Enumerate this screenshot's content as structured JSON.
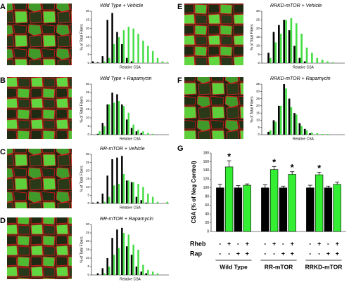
{
  "chart_data": [
    {
      "type": "bar",
      "label": "A",
      "title": "Wild Type + Vehicle",
      "ylabel": "% of Total Fibers",
      "xlabel": "Relative CSA",
      "categories": [
        null,
        null,
        null,
        null,
        null,
        null,
        null,
        null,
        null,
        null,
        null,
        null,
        null,
        null,
        null,
        null
      ],
      "series": [
        {
          "color": "#000000",
          "values": [
            1,
            0.5,
            4,
            25,
            29,
            18,
            11,
            3,
            1,
            0,
            0,
            0,
            0,
            0,
            0,
            0
          ]
        },
        {
          "color": "#44dd44",
          "values": [
            0,
            0,
            1,
            3,
            11,
            15,
            19,
            21,
            20,
            17,
            13,
            10,
            7,
            3,
            1,
            0.5
          ]
        }
      ],
      "ylim": [
        0,
        30
      ],
      "yticks": [
        0,
        5,
        10,
        15,
        20,
        25,
        30
      ]
    },
    {
      "type": "bar",
      "label": "B",
      "title": "Wild Type + Rapamycin",
      "ylabel": "% of Total Fibers",
      "xlabel": "Relative CSA",
      "categories": [
        null,
        null,
        null,
        null,
        null,
        null,
        null,
        null,
        null,
        null,
        null,
        null,
        null,
        null,
        null,
        null
      ],
      "series": [
        {
          "color": "#000000",
          "values": [
            0,
            0.5,
            7,
            18,
            25,
            24,
            18,
            9,
            4,
            2,
            1,
            0,
            0,
            0,
            0,
            0
          ]
        },
        {
          "color": "#44dd44",
          "values": [
            0,
            2,
            5,
            18,
            19,
            20,
            17,
            13,
            6,
            3,
            2,
            1,
            0.5,
            0,
            0,
            0
          ]
        }
      ],
      "ylim": [
        0,
        30
      ],
      "yticks": [
        0,
        5,
        10,
        15,
        20,
        25,
        30
      ]
    },
    {
      "type": "bar",
      "label": "C",
      "title": "RR-mTOR + Vehicle",
      "ylabel": "% of Total Fibers",
      "xlabel": "Relative CSA",
      "categories": [
        null,
        null,
        null,
        null,
        null,
        null,
        null,
        null,
        null,
        null,
        null,
        null,
        null,
        null,
        null,
        null
      ],
      "series": [
        {
          "color": "#000000",
          "values": [
            0.5,
            1,
            6,
            17,
            27,
            28,
            29,
            14,
            13,
            4,
            2,
            0.5,
            0,
            0,
            0,
            0
          ]
        },
        {
          "color": "#44dd44",
          "values": [
            0,
            0,
            1,
            4,
            11,
            12,
            18,
            14,
            13,
            12,
            10,
            6,
            4,
            1,
            0,
            1
          ]
        }
      ],
      "ylim": [
        0,
        30
      ],
      "yticks": [
        0,
        5,
        10,
        15,
        20,
        25,
        30
      ]
    },
    {
      "type": "bar",
      "label": "D",
      "title": "RR-mTOR + Rapamycin",
      "ylabel": "% of Total Fibers",
      "xlabel": "Relative CSA",
      "categories": [
        null,
        null,
        null,
        null,
        null,
        null,
        null,
        null,
        null,
        null,
        null,
        null,
        null,
        null,
        null,
        null
      ],
      "series": [
        {
          "color": "#000000",
          "values": [
            0,
            1,
            4,
            10,
            22,
            27,
            28,
            17,
            12,
            5,
            2,
            1,
            0,
            0,
            0,
            0
          ]
        },
        {
          "color": "#44dd44",
          "values": [
            0,
            0,
            1,
            5,
            12,
            16,
            25,
            24,
            18,
            15,
            6,
            3,
            2,
            1,
            0,
            0
          ]
        }
      ],
      "ylim": [
        0,
        30
      ],
      "yticks": [
        0,
        5,
        10,
        15,
        20,
        25,
        30
      ]
    },
    {
      "type": "bar",
      "label": "E",
      "title": "RRKD-mTOR + Vehicle",
      "ylabel": "% of Total Fibers",
      "xlabel": "Relative CSA",
      "categories": [
        null,
        null,
        null,
        null,
        null,
        null,
        null,
        null,
        null,
        null,
        null,
        null,
        null,
        null,
        null,
        null
      ],
      "series": [
        {
          "color": "#000000",
          "values": [
            0,
            6,
            18,
            22,
            25,
            19,
            10,
            3,
            1,
            0,
            0,
            0,
            0,
            0,
            0,
            0
          ]
        },
        {
          "color": "#44dd44",
          "values": [
            0,
            3,
            12,
            17,
            25,
            26,
            23,
            17,
            9,
            6,
            3,
            2,
            1,
            0.5,
            0,
            0
          ]
        }
      ],
      "ylim": [
        0,
        30
      ],
      "yticks": [
        0,
        5,
        10,
        15,
        20,
        25,
        30
      ]
    },
    {
      "type": "bar",
      "label": "F",
      "title": "RRKD-mTOR + Rapamycin",
      "ylabel": "% of Total Fibers",
      "xlabel": "Relative CSA",
      "categories": [
        null,
        null,
        null,
        null,
        null,
        null,
        null,
        null,
        null,
        null,
        null,
        null,
        null,
        null,
        null,
        null
      ],
      "series": [
        {
          "color": "#000000",
          "values": [
            0,
            2,
            10,
            20,
            35,
            25,
            15,
            8,
            4,
            1,
            0,
            0,
            0,
            0,
            0,
            0
          ]
        },
        {
          "color": "#44dd44",
          "values": [
            0,
            3,
            9,
            20,
            32,
            19,
            14,
            6,
            3,
            1.5,
            1,
            0.5,
            0.5,
            0,
            0,
            0
          ]
        }
      ],
      "ylim": [
        0,
        35
      ],
      "yticks": [
        0,
        5,
        10,
        15,
        20,
        25,
        30,
        35
      ]
    },
    {
      "type": "grouped-bar",
      "label": "G",
      "ylabel": "CSA (% of Neg Control)",
      "groups": [
        "Wild Type",
        "RR-mTOR",
        "RRKD-mTOR"
      ],
      "row_labels": [
        "Rheb",
        "Rap"
      ],
      "rheb": [
        "-",
        "+",
        "-",
        "+"
      ],
      "rap": [
        "-",
        "-",
        "+",
        "+"
      ],
      "colors": [
        "#000000",
        "#33ee33",
        "#000000",
        "#33ee33"
      ],
      "values": [
        [
          100,
          148,
          100,
          106
        ],
        [
          100,
          142,
          100,
          131
        ],
        [
          100,
          130,
          100,
          108
        ]
      ],
      "errors": [
        [
          8,
          14,
          5,
          3
        ],
        [
          7,
          7,
          4,
          6
        ],
        [
          6,
          6,
          4,
          5
        ]
      ],
      "stars": [
        [
          null,
          "*",
          null,
          null
        ],
        [
          null,
          "*",
          null,
          "*"
        ],
        [
          null,
          "*",
          null,
          null
        ]
      ],
      "ylim": [
        0,
        180
      ],
      "yticks": [
        0,
        20,
        40,
        60,
        80,
        100,
        120,
        140,
        160,
        180
      ]
    }
  ]
}
